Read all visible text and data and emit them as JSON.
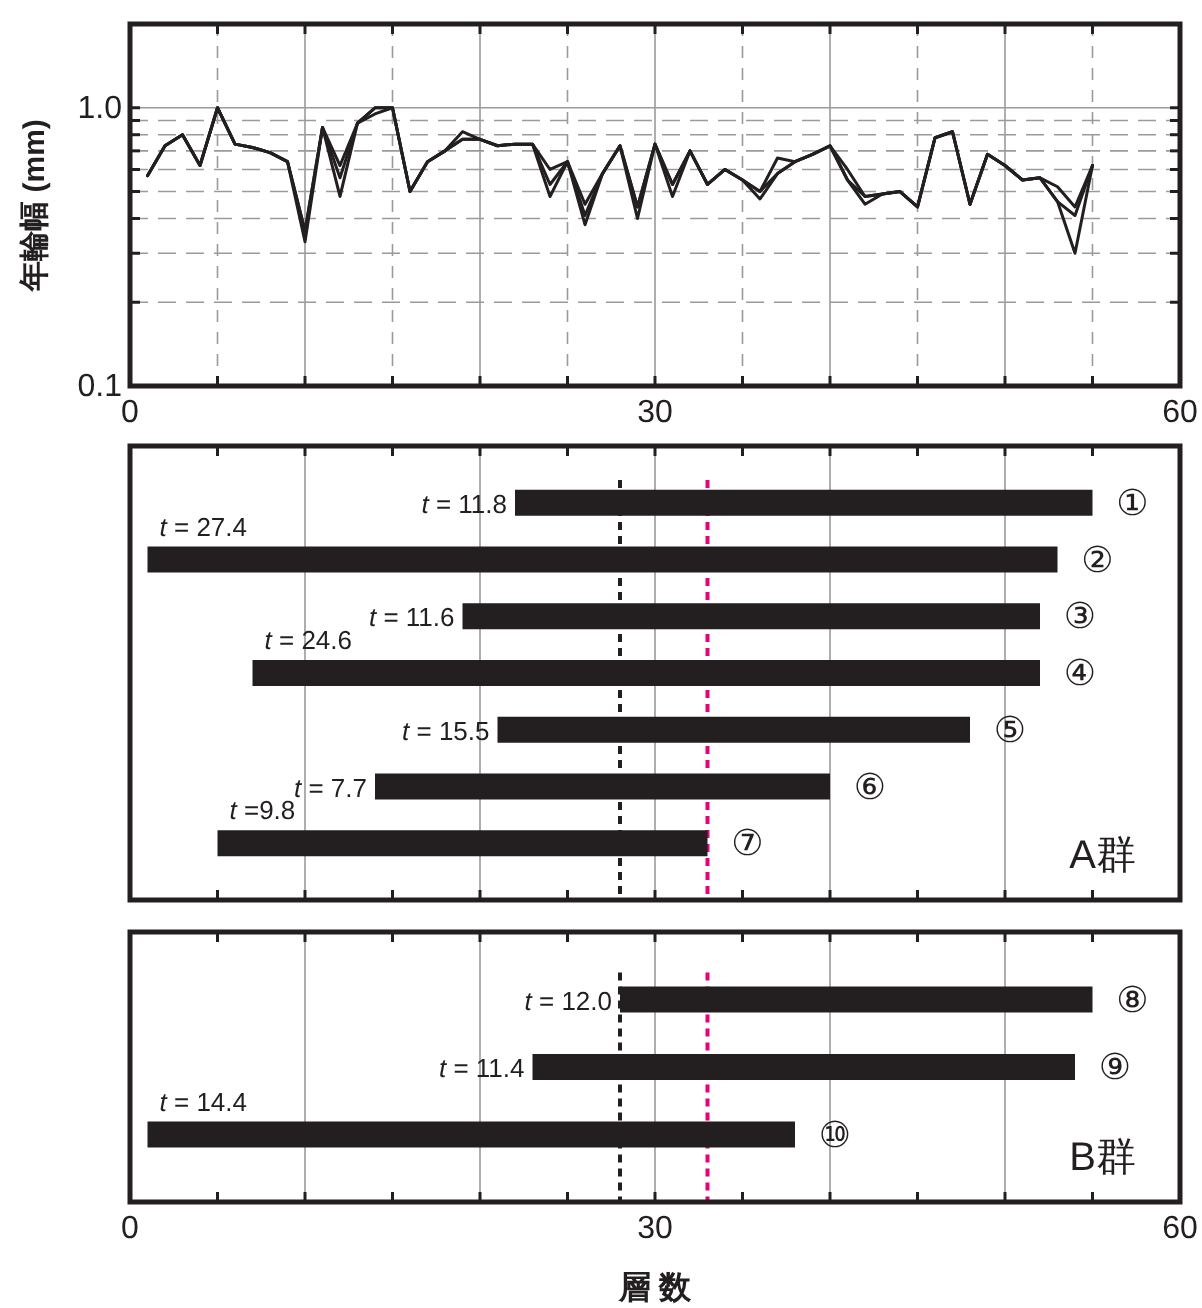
{
  "chart_data": [
    {
      "type": "line",
      "ylabel": "年輪幅 (mm)",
      "log": "y",
      "grid": true,
      "xlim": [
        0,
        60
      ],
      "ylim": [
        0.1,
        2
      ],
      "xticks": [
        {
          "value": 0,
          "label": "0"
        },
        {
          "value": 5,
          "label": null
        },
        {
          "value": 10,
          "label": null
        },
        {
          "value": 15,
          "label": null
        },
        {
          "value": 20,
          "label": null
        },
        {
          "value": 25,
          "label": null
        },
        {
          "value": 30,
          "label": "30"
        },
        {
          "value": 35,
          "label": null
        },
        {
          "value": 40,
          "label": null
        },
        {
          "value": 45,
          "label": null
        },
        {
          "value": 50,
          "label": null
        },
        {
          "value": 55,
          "label": null
        },
        {
          "value": 60,
          "label": "60"
        }
      ],
      "yticks": [
        {
          "value": 0.1,
          "label": "0.1"
        },
        {
          "value": 0.2,
          "label": null
        },
        {
          "value": 0.3,
          "label": null
        },
        {
          "value": 0.4,
          "label": null
        },
        {
          "value": 0.5,
          "label": null
        },
        {
          "value": 0.6,
          "label": null
        },
        {
          "value": 0.7,
          "label": null
        },
        {
          "value": 0.8,
          "label": null
        },
        {
          "value": 0.9,
          "label": null
        },
        {
          "value": 1,
          "label": "1.0"
        }
      ],
      "x": [
        1,
        2,
        3,
        4,
        5,
        6,
        7,
        8,
        9,
        10,
        11,
        12,
        13,
        14,
        15,
        16,
        17,
        18,
        19,
        20,
        21,
        22,
        23,
        24,
        25,
        26,
        27,
        28,
        29,
        30,
        31,
        32,
        33,
        34,
        35,
        36,
        37,
        38,
        39,
        40,
        41,
        42,
        43,
        44,
        45,
        46,
        47,
        48,
        49,
        50,
        51,
        52,
        53,
        54,
        55
      ],
      "series": [
        {
          "color": "#231f20",
          "values": [
            0.57,
            0.73,
            0.8,
            0.62,
            1.0,
            0.74,
            0.72,
            0.69,
            0.64,
            0.36,
            0.85,
            0.56,
            0.88,
            1.0,
            1.0,
            0.5,
            0.64,
            0.7,
            0.77,
            0.77,
            0.73,
            0.74,
            0.74,
            0.53,
            0.64,
            0.41,
            0.58,
            0.73,
            0.44,
            0.74,
            0.53,
            0.7,
            0.53,
            0.6,
            0.55,
            0.5,
            0.58,
            0.64,
            0.68,
            0.73,
            0.55,
            0.48,
            0.49,
            0.5,
            0.44,
            0.78,
            0.82,
            0.45,
            0.68,
            0.62,
            0.55,
            0.56,
            0.46,
            0.41,
            0.62
          ]
        },
        {
          "color": "#231f20",
          "values": [
            0.57,
            0.73,
            0.8,
            0.62,
            1.0,
            0.74,
            0.72,
            0.69,
            0.64,
            0.33,
            0.85,
            0.48,
            0.88,
            1.0,
            1.0,
            0.5,
            0.64,
            0.7,
            0.77,
            0.77,
            0.73,
            0.74,
            0.74,
            0.48,
            0.64,
            0.38,
            0.58,
            0.73,
            0.4,
            0.74,
            0.48,
            0.7,
            0.53,
            0.6,
            0.55,
            0.47,
            0.58,
            0.64,
            0.68,
            0.73,
            0.55,
            0.45,
            0.49,
            0.5,
            0.44,
            0.78,
            0.82,
            0.45,
            0.68,
            0.62,
            0.55,
            0.56,
            0.46,
            0.3,
            0.62
          ]
        },
        {
          "color": "#231f20",
          "values": [
            0.57,
            0.73,
            0.8,
            0.62,
            1.0,
            0.74,
            0.72,
            0.69,
            0.64,
            0.36,
            0.85,
            0.62,
            0.88,
            0.95,
            1.0,
            0.5,
            0.64,
            0.7,
            0.82,
            0.77,
            0.73,
            0.74,
            0.74,
            0.6,
            0.64,
            0.45,
            0.58,
            0.73,
            0.44,
            0.74,
            0.53,
            0.7,
            0.53,
            0.6,
            0.55,
            0.5,
            0.66,
            0.64,
            0.68,
            0.73,
            0.6,
            0.48,
            0.49,
            0.5,
            0.44,
            0.78,
            0.82,
            0.45,
            0.68,
            0.62,
            0.55,
            0.56,
            0.52,
            0.44,
            0.62
          ]
        }
      ]
    },
    {
      "type": "bar",
      "orientation": "horizontal",
      "grid": "x",
      "tick_labels": false,
      "xlim": [
        0,
        60
      ],
      "xticks": [
        {
          "value": 0,
          "label": null
        },
        {
          "value": 5,
          "label": null
        },
        {
          "value": 10,
          "label": null
        },
        {
          "value": 15,
          "label": null
        },
        {
          "value": 20,
          "label": null
        },
        {
          "value": 25,
          "label": null
        },
        {
          "value": 30,
          "label": null
        },
        {
          "value": 35,
          "label": null
        },
        {
          "value": 40,
          "label": null
        },
        {
          "value": 45,
          "label": null
        },
        {
          "value": 50,
          "label": null
        },
        {
          "value": 55,
          "label": null
        },
        {
          "value": 60,
          "label": null
        }
      ],
      "categories": [
        "①",
        "②",
        "③",
        "④",
        "⑤",
        "⑥",
        "⑦"
      ],
      "base": [
        22,
        1,
        19,
        7,
        21,
        14,
        5
      ],
      "values": [
        33,
        52,
        33,
        45,
        27,
        26,
        28
      ],
      "color": "#231f20",
      "ref_lines": [
        {
          "axis": "x",
          "value": 28,
          "color": "#231f20",
          "line_style": "dashed"
        },
        {
          "axis": "x",
          "value": 33,
          "color": "#e6007e",
          "line_style": "dashed"
        }
      ],
      "annotations": [
        "A群",
        {
          "text": "t = 11.8",
          "x": 22,
          "y": "①"
        },
        {
          "text": "t = 27.4",
          "x": 1,
          "y": "②"
        },
        {
          "text": "t = 11.6",
          "x": 19,
          "y": "③"
        },
        {
          "text": "t = 24.6",
          "x": 7,
          "y": "④"
        },
        {
          "text": "t = 15.5",
          "x": 21,
          "y": "⑤"
        },
        {
          "text": "t = 7.7",
          "x": 14,
          "y": "⑥"
        },
        {
          "text": "t =9.8",
          "x": 5,
          "y": "⑦"
        }
      ]
    },
    {
      "type": "bar",
      "orientation": "horizontal",
      "grid": "x",
      "tick_labels": "x",
      "xlabel": "層 数",
      "xlim": [
        0,
        60
      ],
      "xticks": [
        {
          "value": 0,
          "label": "0"
        },
        {
          "value": 5,
          "label": null
        },
        {
          "value": 10,
          "label": null
        },
        {
          "value": 15,
          "label": null
        },
        {
          "value": 20,
          "label": null
        },
        {
          "value": 25,
          "label": null
        },
        {
          "value": 30,
          "label": "30"
        },
        {
          "value": 35,
          "label": null
        },
        {
          "value": 40,
          "label": null
        },
        {
          "value": 45,
          "label": null
        },
        {
          "value": 50,
          "label": null
        },
        {
          "value": 55,
          "label": null
        },
        {
          "value": 60,
          "label": "60"
        }
      ],
      "categories": [
        "⑧",
        "⑨",
        "⑩"
      ],
      "base": [
        28,
        23,
        1
      ],
      "values": [
        27,
        31,
        37
      ],
      "color": "#231f20",
      "ref_lines": [
        {
          "axis": "x",
          "value": 28,
          "color": "#231f20",
          "line_style": "dashed"
        },
        {
          "axis": "x",
          "value": 33,
          "color": "#e6007e",
          "line_style": "dashed"
        }
      ],
      "annotations": [
        "B群",
        {
          "text": "t = 12.0",
          "x": 28,
          "y": "⑧"
        },
        {
          "text": "t = 11.4",
          "x": 23,
          "y": "⑨"
        },
        {
          "text": "t = 14.4",
          "x": 1,
          "y": "⑩"
        }
      ]
    }
  ]
}
